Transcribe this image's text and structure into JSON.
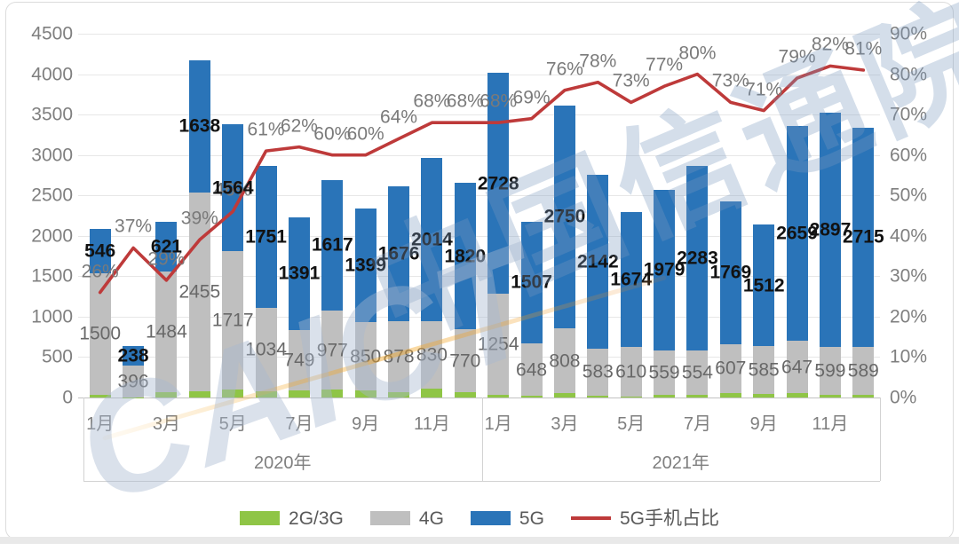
{
  "watermark": {
    "text_cn": "中国信通院",
    "text_en": "CAICT"
  },
  "chart_data": {
    "type": "bar",
    "subtype": "stacked-bars-with-percentage-line",
    "title": "",
    "x_years": [
      "2020年",
      "2021年"
    ],
    "x_months": [
      "1月",
      "2月",
      "3月",
      "4月",
      "5月",
      "6月",
      "7月",
      "8月",
      "9月",
      "10月",
      "11月",
      "12月"
    ],
    "x_visible_tick_indices": [
      0,
      2,
      4,
      6,
      8,
      10
    ],
    "left_axis": {
      "min": 0,
      "max": 4500,
      "step": 500
    },
    "right_axis": {
      "min": 0,
      "max": 90,
      "step": 10,
      "suffix": "%"
    },
    "grid": true,
    "legend_position": "bottom",
    "series": [
      {
        "name": "2G/3G",
        "type": "bar",
        "stacked": true,
        "color": "#8FC546",
        "labels_shown": false,
        "estimated": true,
        "values": [
          35,
          4,
          71,
          80,
          95,
          78,
          90,
          97,
          85,
          61,
          114,
          70,
          30,
          21,
          51,
          25,
          13,
          28,
          31,
          55,
          47,
          53,
          30,
          36
        ]
      },
      {
        "name": "4G",
        "type": "bar",
        "stacked": true,
        "color": "#BFBFBF",
        "labels_shown": true,
        "values": [
          1500,
          396,
          1484,
          2455,
          1717,
          1034,
          749,
          977,
          850,
          878,
          830,
          770,
          1254,
          648,
          808,
          583,
          610,
          559,
          554,
          607,
          585,
          647,
          599,
          589
        ]
      },
      {
        "name": "5G",
        "type": "bar",
        "stacked": true,
        "color": "#2A74B8",
        "labels_shown": true,
        "labels_bold": true,
        "values": [
          546,
          238,
          621,
          1638,
          1564,
          1751,
          1391,
          1617,
          1399,
          1676,
          2014,
          1820,
          2728,
          1507,
          2750,
          2142,
          1674,
          1979,
          2283,
          1769,
          1512,
          2659,
          2897,
          2715
        ]
      },
      {
        "name": "5G手机占比",
        "type": "line",
        "axis": "right",
        "color": "#BE3A3A",
        "labels_shown": true,
        "label_suffix": "%",
        "values": [
          26,
          37,
          29,
          39,
          46,
          61,
          62,
          60,
          60,
          64,
          68,
          68,
          68,
          69,
          76,
          78,
          73,
          77,
          80,
          73,
          71,
          79,
          82,
          81
        ]
      }
    ],
    "legend": [
      {
        "label": "2G/3G",
        "color": "#8FC546",
        "swatch": "bar"
      },
      {
        "label": "4G",
        "color": "#BFBFBF",
        "swatch": "bar"
      },
      {
        "label": "5G",
        "color": "#2A74B8",
        "swatch": "bar"
      },
      {
        "label": "5G手机占比",
        "color": "#BE3A3A",
        "swatch": "line"
      }
    ]
  }
}
